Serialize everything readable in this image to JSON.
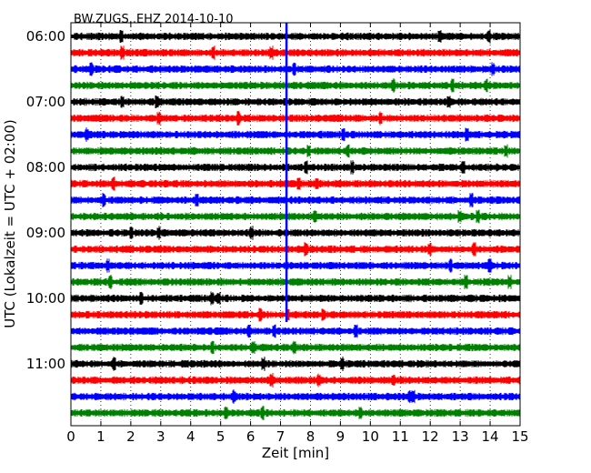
{
  "chart_data": {
    "type": "line",
    "title": "BW.ZUGS..EHZ 2014-10-10",
    "xlabel": "Zeit  [min]",
    "ylabel": "UTC (Lokalzeit = UTC + 02:00)",
    "xlim": [
      0,
      15
    ],
    "x_ticks": [
      "0",
      "1",
      "2",
      "3",
      "4",
      "5",
      "6",
      "7",
      "8",
      "9",
      "10",
      "11",
      "12",
      "13",
      "14",
      "15"
    ],
    "y_ticks": [
      "06:00",
      "07:00",
      "08:00",
      "09:00",
      "10:00",
      "11:00"
    ],
    "grid": "x-dotted",
    "trace_interval_min": 15,
    "trace_colors": [
      "#000000",
      "#ff0000",
      "#0000ff",
      "#008000"
    ],
    "series": [
      {
        "start": "06:00"
      },
      {
        "start": "06:15"
      },
      {
        "start": "06:30"
      },
      {
        "start": "06:45"
      },
      {
        "start": "07:00"
      },
      {
        "start": "07:15"
      },
      {
        "start": "07:30"
      },
      {
        "start": "07:45"
      },
      {
        "start": "08:00"
      },
      {
        "start": "08:15"
      },
      {
        "start": "08:30"
      },
      {
        "start": "08:45"
      },
      {
        "start": "09:00"
      },
      {
        "start": "09:15"
      },
      {
        "start": "09:30"
      },
      {
        "start": "09:45"
      },
      {
        "start": "10:00"
      },
      {
        "start": "10:15"
      },
      {
        "start": "10:30"
      },
      {
        "start": "10:45"
      },
      {
        "start": "11:00"
      },
      {
        "start": "11:15"
      },
      {
        "start": "11:30"
      },
      {
        "start": "11:45"
      }
    ],
    "vertical_marker": {
      "x": 7.2,
      "color": "#0000ff",
      "from": "06:00",
      "to": "10:15"
    }
  }
}
